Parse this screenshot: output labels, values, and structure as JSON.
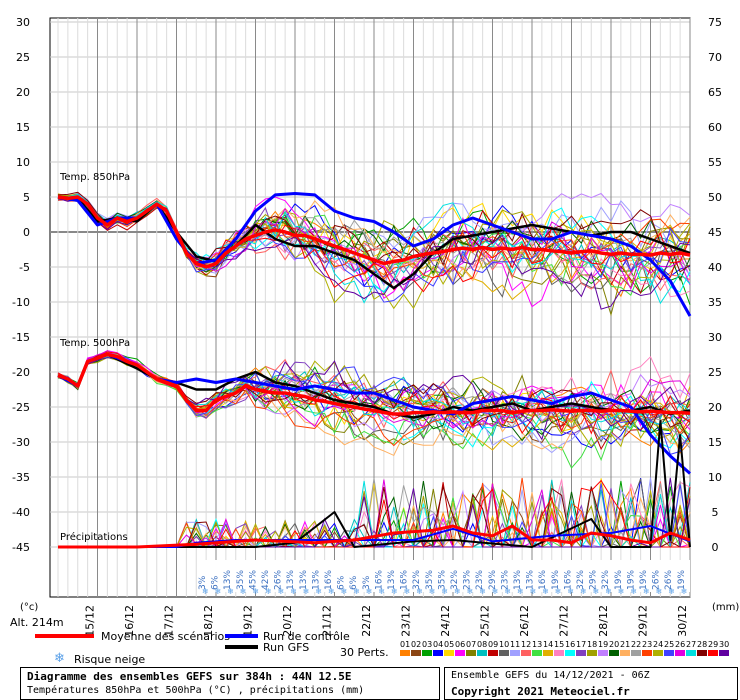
{
  "chart_data": {
    "type": "line",
    "left_axis": {
      "unit": "(°c)",
      "ticks": [
        30,
        25,
        20,
        15,
        10,
        5,
        0,
        -5,
        -10,
        -15,
        -20,
        -25,
        -30,
        -35,
        -40,
        -45
      ]
    },
    "right_axis": {
      "unit": "(mm)",
      "ticks": [
        75,
        70,
        65,
        60,
        55,
        50,
        45,
        40,
        35,
        30,
        25,
        20,
        15,
        10,
        5,
        0
      ]
    },
    "x_labels": [
      "15/12",
      "16/12",
      "17/12",
      "18/12",
      "19/12",
      "20/12",
      "21/12",
      "22/12",
      "23/12",
      "24/12",
      "25/12",
      "26/12",
      "27/12",
      "28/12",
      "29/12",
      "30/12"
    ],
    "altitude_label": "Alt. 214m",
    "panel_labels": {
      "t850": "Temp. 850hPa",
      "t500": "Temp. 500hPa",
      "precip": "Précipitations"
    },
    "snow_risk_percent": [
      "3%",
      "6%",
      "13%",
      "35%",
      "45%",
      "42%",
      "26%",
      "13%",
      "13%",
      "13%",
      "16%",
      "6%",
      "6%",
      "3%",
      "16%",
      "13%",
      "16%",
      "32%",
      "35%",
      "35%",
      "32%",
      "23%",
      "23%",
      "29%",
      "23%",
      "13%",
      "13%",
      "16%",
      "19%",
      "16%",
      "32%",
      "29%",
      "32%",
      "19%",
      "19%",
      "19%",
      "26%",
      "26%",
      "19%"
    ],
    "t850_mean": [
      [
        0,
        5
      ],
      [
        1,
        4.8
      ],
      [
        2,
        5
      ],
      [
        3,
        4
      ],
      [
        4,
        2
      ],
      [
        5,
        1
      ],
      [
        6,
        2
      ],
      [
        7,
        1.5
      ],
      [
        8,
        2
      ],
      [
        9,
        3
      ],
      [
        10,
        4
      ],
      [
        11,
        3
      ],
      [
        12,
        0
      ],
      [
        13,
        -3
      ],
      [
        14,
        -4.5
      ],
      [
        15,
        -5
      ],
      [
        16,
        -4.5
      ],
      [
        17,
        -3
      ],
      [
        18,
        -2
      ],
      [
        19,
        -1
      ],
      [
        20,
        -0.5
      ],
      [
        21,
        0
      ],
      [
        22,
        0.3
      ],
      [
        23,
        0
      ],
      [
        24,
        -0.5
      ],
      [
        25,
        -0.5
      ],
      [
        26,
        -1
      ],
      [
        27,
        -1.5
      ],
      [
        28,
        -2
      ],
      [
        29,
        -2.5
      ],
      [
        30,
        -3
      ],
      [
        31,
        -3.5
      ],
      [
        32,
        -4
      ],
      [
        33,
        -4.5
      ],
      [
        34,
        -4.2
      ],
      [
        35,
        -4
      ],
      [
        36,
        -3.5
      ],
      [
        37,
        -3.2
      ],
      [
        38,
        -3
      ],
      [
        39,
        -2.8
      ],
      [
        40,
        -2.5
      ],
      [
        41,
        -2.3
      ],
      [
        42,
        -2.5
      ],
      [
        43,
        -2.2
      ],
      [
        44,
        -2.5
      ],
      [
        45,
        -2.3
      ],
      [
        46,
        -2.5
      ],
      [
        47,
        -2.2
      ],
      [
        48,
        -2.5
      ],
      [
        49,
        -2.5
      ],
      [
        50,
        -2.7
      ],
      [
        51,
        -2.8
      ],
      [
        52,
        -3
      ],
      [
        53,
        -2.8
      ],
      [
        54,
        -2.7
      ],
      [
        55,
        -3
      ],
      [
        56,
        -3.2
      ],
      [
        57,
        -3
      ],
      [
        58,
        -3.2
      ],
      [
        59,
        -3.2
      ],
      [
        60,
        -3.3
      ],
      [
        61,
        -3
      ],
      [
        62,
        -3.2
      ],
      [
        63,
        -3
      ],
      [
        64,
        -3.3
      ]
    ],
    "t850_control": [
      [
        0,
        5
      ],
      [
        2,
        4.5
      ],
      [
        4,
        1
      ],
      [
        6,
        2
      ],
      [
        8,
        2
      ],
      [
        10,
        4
      ],
      [
        12,
        -1
      ],
      [
        14,
        -4.5
      ],
      [
        16,
        -4
      ],
      [
        18,
        -1
      ],
      [
        20,
        3
      ],
      [
        22,
        5.3
      ],
      [
        24,
        5.5
      ],
      [
        26,
        5.3
      ],
      [
        28,
        3
      ],
      [
        30,
        2
      ],
      [
        32,
        1.5
      ],
      [
        34,
        0
      ],
      [
        36,
        -2
      ],
      [
        38,
        -1
      ],
      [
        40,
        1
      ],
      [
        42,
        2
      ],
      [
        44,
        1
      ],
      [
        46,
        0
      ],
      [
        48,
        -1
      ],
      [
        50,
        -1
      ],
      [
        52,
        0
      ],
      [
        54,
        -0.5
      ],
      [
        56,
        -1
      ],
      [
        58,
        -2
      ],
      [
        60,
        -4
      ],
      [
        62,
        -7
      ],
      [
        64,
        -12
      ]
    ],
    "t850_gfs": [
      [
        0,
        5
      ],
      [
        2,
        4.8
      ],
      [
        4,
        1.5
      ],
      [
        6,
        2
      ],
      [
        8,
        1.5
      ],
      [
        10,
        4
      ],
      [
        12,
        0
      ],
      [
        14,
        -3.5
      ],
      [
        16,
        -4.2
      ],
      [
        18,
        -2
      ],
      [
        20,
        1
      ],
      [
        22,
        -1
      ],
      [
        24,
        -2
      ],
      [
        26,
        -2
      ],
      [
        28,
        -3
      ],
      [
        30,
        -4
      ],
      [
        32,
        -6
      ],
      [
        34,
        -8
      ],
      [
        36,
        -6
      ],
      [
        38,
        -3
      ],
      [
        40,
        -1
      ],
      [
        42,
        -0.5
      ],
      [
        44,
        0
      ],
      [
        46,
        0.5
      ],
      [
        48,
        1
      ],
      [
        50,
        0.5
      ],
      [
        52,
        0
      ],
      [
        54,
        -0.5
      ],
      [
        56,
        0
      ],
      [
        58,
        0
      ],
      [
        60,
        -1
      ],
      [
        62,
        -2
      ],
      [
        64,
        -3
      ]
    ],
    "t500_mean": [
      [
        0,
        -20.5
      ],
      [
        1,
        -21
      ],
      [
        2,
        -22
      ],
      [
        3,
        -18.5
      ],
      [
        4,
        -18
      ],
      [
        5,
        -17.5
      ],
      [
        6,
        -17.8
      ],
      [
        7,
        -18.5
      ],
      [
        8,
        -19
      ],
      [
        9,
        -20
      ],
      [
        10,
        -21
      ],
      [
        11,
        -21.5
      ],
      [
        12,
        -22
      ],
      [
        13,
        -24
      ],
      [
        14,
        -25.5
      ],
      [
        15,
        -25.5
      ],
      [
        16,
        -24
      ],
      [
        17,
        -23.5
      ],
      [
        18,
        -23
      ],
      [
        19,
        -22
      ],
      [
        20,
        -22.5
      ],
      [
        21,
        -22.8
      ],
      [
        22,
        -23
      ],
      [
        23,
        -23
      ],
      [
        24,
        -23.3
      ],
      [
        25,
        -23.5
      ],
      [
        26,
        -24
      ],
      [
        27,
        -24.2
      ],
      [
        28,
        -24.5
      ],
      [
        29,
        -24.8
      ],
      [
        30,
        -25
      ],
      [
        31,
        -25.3
      ],
      [
        32,
        -25.5
      ],
      [
        33,
        -25.8
      ],
      [
        34,
        -26
      ],
      [
        35,
        -26
      ],
      [
        36,
        -25.8
      ],
      [
        37,
        -25.8
      ],
      [
        38,
        -25.7
      ],
      [
        39,
        -25.8
      ],
      [
        40,
        -25.7
      ],
      [
        41,
        -25.8
      ],
      [
        42,
        -25.8
      ],
      [
        43,
        -25.5
      ],
      [
        44,
        -25.5
      ],
      [
        45,
        -25.5
      ],
      [
        46,
        -25.8
      ],
      [
        47,
        -25.6
      ],
      [
        48,
        -25.5
      ],
      [
        49,
        -25.5
      ],
      [
        50,
        -25.4
      ],
      [
        51,
        -25.5
      ],
      [
        52,
        -25.6
      ],
      [
        53,
        -25.5
      ],
      [
        54,
        -25.5
      ],
      [
        55,
        -25.6
      ],
      [
        56,
        -25.5
      ],
      [
        57,
        -25.5
      ],
      [
        58,
        -25.6
      ],
      [
        59,
        -25.7
      ],
      [
        60,
        -25.6
      ],
      [
        61,
        -25.7
      ],
      [
        62,
        -25.8
      ],
      [
        63,
        -25.8
      ],
      [
        64,
        -25.9
      ]
    ],
    "t500_control": [
      [
        0,
        -20.5
      ],
      [
        2,
        -22
      ],
      [
        3,
        -18.5
      ],
      [
        5,
        -17.5
      ],
      [
        8,
        -19
      ],
      [
        10,
        -21
      ],
      [
        12,
        -21.5
      ],
      [
        14,
        -21
      ],
      [
        16,
        -21.5
      ],
      [
        18,
        -21
      ],
      [
        20,
        -21.5
      ],
      [
        22,
        -22
      ],
      [
        24,
        -22.5
      ],
      [
        26,
        -22
      ],
      [
        28,
        -22.5
      ],
      [
        30,
        -23
      ],
      [
        32,
        -23
      ],
      [
        34,
        -24
      ],
      [
        36,
        -25
      ],
      [
        38,
        -25.5
      ],
      [
        40,
        -26
      ],
      [
        42,
        -24.5
      ],
      [
        44,
        -24
      ],
      [
        46,
        -23.5
      ],
      [
        48,
        -24
      ],
      [
        50,
        -24.5
      ],
      [
        52,
        -23.5
      ],
      [
        54,
        -23
      ],
      [
        56,
        -24
      ],
      [
        58,
        -25
      ],
      [
        60,
        -29
      ],
      [
        62,
        -32
      ],
      [
        64,
        -34.5
      ]
    ],
    "t500_gfs": [
      [
        0,
        -20.5
      ],
      [
        2,
        -22
      ],
      [
        3,
        -18.5
      ],
      [
        5,
        -17.5
      ],
      [
        8,
        -19.5
      ],
      [
        10,
        -21
      ],
      [
        12,
        -21.5
      ],
      [
        14,
        -22.5
      ],
      [
        16,
        -22.5
      ],
      [
        18,
        -21
      ],
      [
        20,
        -20
      ],
      [
        22,
        -21.5
      ],
      [
        24,
        -22
      ],
      [
        26,
        -23
      ],
      [
        28,
        -24
      ],
      [
        30,
        -24.5
      ],
      [
        32,
        -25
      ],
      [
        34,
        -26
      ],
      [
        36,
        -26.5
      ],
      [
        38,
        -26
      ],
      [
        40,
        -25
      ],
      [
        42,
        -25.5
      ],
      [
        44,
        -25
      ],
      [
        46,
        -24.5
      ],
      [
        48,
        -25.5
      ],
      [
        50,
        -25
      ],
      [
        52,
        -24.5
      ],
      [
        54,
        -25
      ],
      [
        56,
        -25.5
      ],
      [
        58,
        -25.5
      ],
      [
        60,
        -25
      ],
      [
        62,
        -26
      ],
      [
        64,
        -25.5
      ]
    ],
    "precip_mean_mm": [
      [
        0,
        0
      ],
      [
        8,
        0
      ],
      [
        14,
        0.2
      ],
      [
        20,
        0.5
      ],
      [
        26,
        0.3
      ],
      [
        30,
        0.5
      ],
      [
        34,
        1
      ],
      [
        38,
        1.2
      ],
      [
        40,
        1.5
      ],
      [
        42,
        1
      ],
      [
        44,
        0.8
      ],
      [
        46,
        1.5
      ],
      [
        48,
        0.5
      ],
      [
        50,
        0.5
      ],
      [
        52,
        0.3
      ],
      [
        54,
        1
      ],
      [
        56,
        0.8
      ],
      [
        58,
        0.5
      ],
      [
        60,
        0.3
      ],
      [
        62,
        1
      ],
      [
        64,
        0.5
      ]
    ],
    "precip_control_mm": [
      [
        0,
        0
      ],
      [
        12,
        0
      ],
      [
        14,
        0.3
      ],
      [
        18,
        0.5
      ],
      [
        30,
        0.5
      ],
      [
        36,
        0.5
      ],
      [
        40,
        1.3
      ],
      [
        44,
        0.4
      ],
      [
        50,
        0.8
      ],
      [
        56,
        1
      ],
      [
        60,
        1.5
      ],
      [
        64,
        0.4
      ]
    ],
    "precip_gfs_mm": [
      [
        0,
        0
      ],
      [
        20,
        0
      ],
      [
        24,
        0.3
      ],
      [
        28,
        2.5
      ],
      [
        30,
        0
      ],
      [
        36,
        0.4
      ],
      [
        40,
        0.5
      ],
      [
        48,
        0
      ],
      [
        54,
        2
      ],
      [
        56,
        0
      ],
      [
        60,
        0
      ],
      [
        61,
        9
      ],
      [
        62,
        0.5
      ],
      [
        63,
        8
      ],
      [
        64,
        0
      ]
    ],
    "legend": {
      "mean": {
        "label": "Moyenne des scénarios",
        "color": "#ff0000"
      },
      "control": {
        "label": "Run de contrôle",
        "color": "#0000ff"
      },
      "gfs": {
        "label": "Run GFS",
        "color": "#000000"
      },
      "snow": {
        "label": "Risque neige"
      },
      "perts_label": "30 Perts.",
      "perts_numbers": [
        "01",
        "02",
        "03",
        "04",
        "05",
        "06",
        "07",
        "08",
        "09",
        "10",
        "11",
        "12",
        "13",
        "14",
        "15",
        "16",
        "17",
        "18",
        "19",
        "20",
        "21",
        "22",
        "23",
        "24",
        "25",
        "26",
        "27",
        "28",
        "29",
        "30"
      ],
      "perts_colors": [
        "#ff8000",
        "#8b4513",
        "#00a000",
        "#0000ff",
        "#ffd700",
        "#ff00ff",
        "#808000",
        "#00c0c0",
        "#c00000",
        "#606060",
        "#a0a0ff",
        "#ff6060",
        "#40e040",
        "#e0b000",
        "#ff80c0",
        "#00ffff",
        "#8040c0",
        "#a0a000",
        "#c080ff",
        "#006000",
        "#ffb060",
        "#9fa0a0",
        "#ff4000",
        "#b0b000",
        "#4040ff",
        "#e000e0",
        "#00e0e0",
        "#800000",
        "#ff0000",
        "#6000a0"
      ]
    }
  },
  "footer": {
    "title_line": "Diagramme des ensembles GEFS sur 384h : 44N 12.5E",
    "subtitle_line": "Températures 850hPa et 500hPa (°C) , précipitations (mm)",
    "run_line": "Ensemble GEFS du 14/12/2021 - 06Z",
    "copyright_line": "Copyright 2021 Meteociel.fr"
  }
}
